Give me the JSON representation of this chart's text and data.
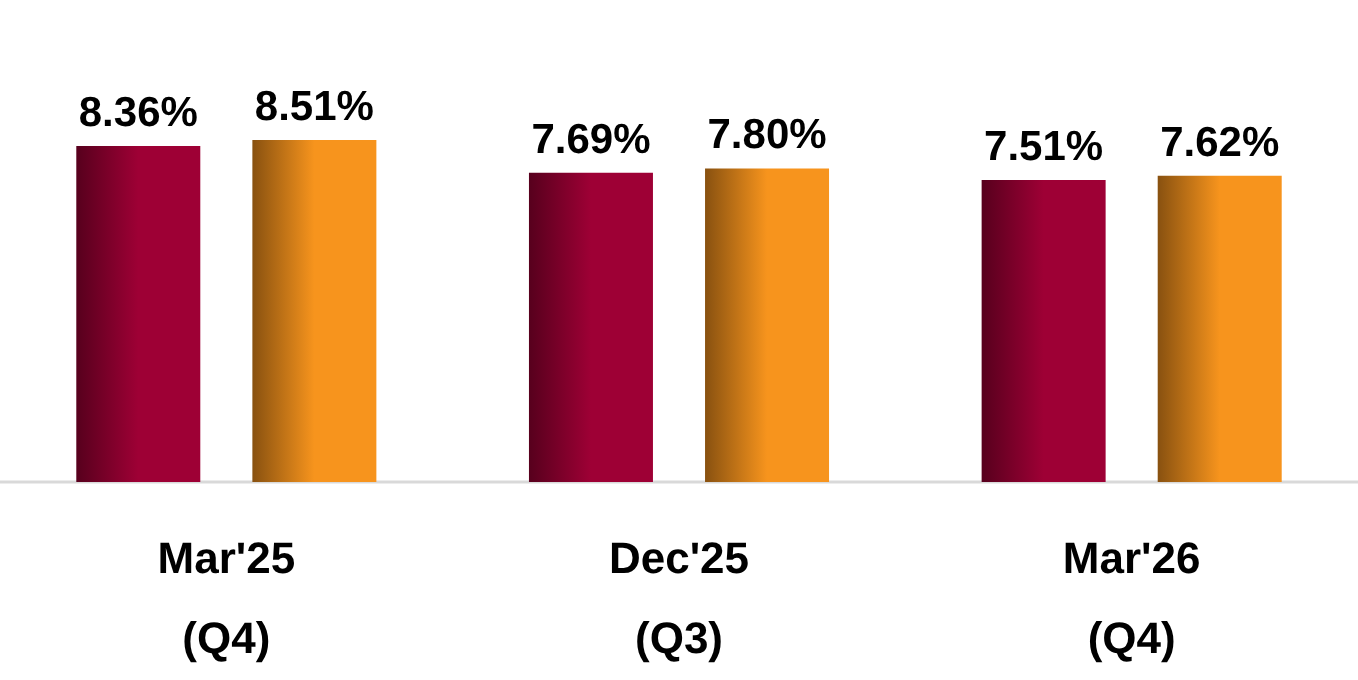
{
  "chart_data": {
    "type": "bar",
    "categories": [
      "Mar'25\n(Q4)",
      "Dec'25\n(Q3)",
      "Mar'26\n(Q4)"
    ],
    "series": [
      {
        "color": "#9e0035",
        "values": [
          8.36,
          7.69,
          7.51
        ],
        "value_labels": [
          "8.36%",
          "7.69%",
          "7.51%"
        ]
      },
      {
        "color": "#f7941d",
        "values": [
          8.51,
          7.8,
          7.62
        ],
        "value_labels": [
          "8.51%",
          "7.80%",
          "7.62%"
        ]
      }
    ],
    "tick_labels": "x"
  }
}
